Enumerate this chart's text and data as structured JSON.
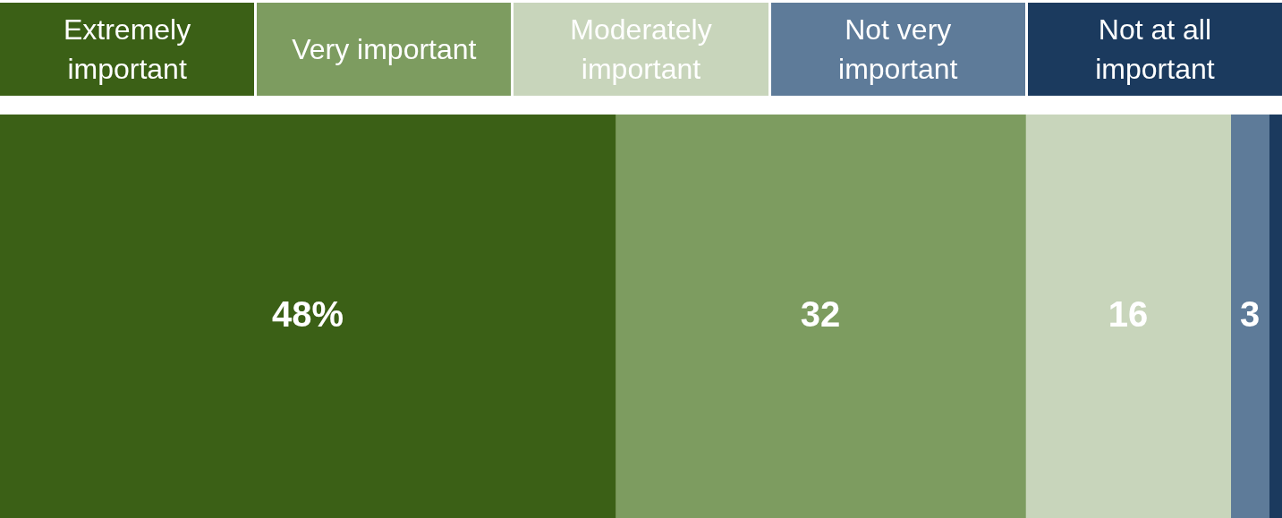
{
  "chart_data": {
    "type": "bar",
    "orientation": "horizontal",
    "stacked": true,
    "categories": [
      null
    ],
    "xlim": [
      0,
      100
    ],
    "legend": "top",
    "series": [
      {
        "name": "Extremely important",
        "color": "#3b6016",
        "values": [
          48
        ],
        "value_labels": [
          "48%"
        ]
      },
      {
        "name": "Very important",
        "color": "#7d9c60",
        "values": [
          32
        ],
        "value_labels": [
          "32"
        ]
      },
      {
        "name": "Moderately important",
        "color": "#c8d5bb",
        "values": [
          16
        ],
        "value_labels": [
          "16"
        ]
      },
      {
        "name": "Not very important",
        "color": "#5e7b99",
        "values": [
          3
        ],
        "value_labels": [
          "3"
        ]
      },
      {
        "name": "Not at all important",
        "color": "#1b3a5e",
        "values": [
          1
        ],
        "value_labels": [
          null
        ]
      }
    ]
  }
}
